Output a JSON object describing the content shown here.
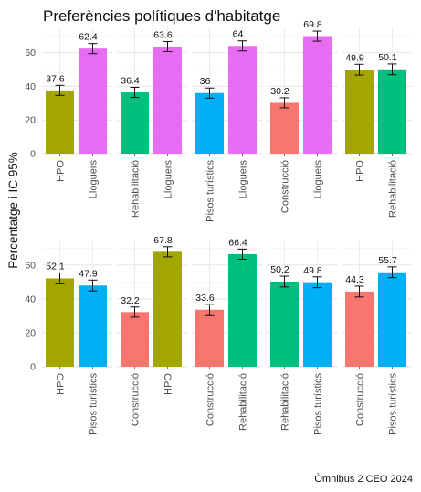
{
  "chart_data": {
    "type": "bar",
    "title": "Preferències polítiques d'habitatge",
    "ylabel": "Percentatge i IC 95%",
    "caption": "Òmnibus 2 CEO 2024",
    "ylim": [
      0,
      75
    ],
    "yticks": [
      "0",
      "20",
      "40",
      "60"
    ],
    "grid": true,
    "error_bars": "IC 95%",
    "colors": {
      "HPO": "#a3a500",
      "Lloguers": "#e76bf3",
      "Rehabilitació": "#00bf7d",
      "Pisos turístics": "#00b0f6",
      "Construcció": "#f8766d"
    },
    "panels": [
      {
        "bars": [
          {
            "category": "HPO",
            "value": 37.6,
            "label": "37.6",
            "ci": 3.0
          },
          {
            "category": "Lloguers",
            "value": 62.4,
            "label": "62.4",
            "ci": 3.0
          }
        ]
      },
      {
        "bars": [
          {
            "category": "Rehabilitació",
            "value": 36.4,
            "label": "36.4",
            "ci": 3.0
          },
          {
            "category": "Lloguers",
            "value": 63.6,
            "label": "63.6",
            "ci": 3.0
          }
        ]
      },
      {
        "bars": [
          {
            "category": "Pisos turístics",
            "value": 36,
            "label": "36",
            "ci": 3.0
          },
          {
            "category": "Lloguers",
            "value": 64,
            "label": "64",
            "ci": 3.0
          }
        ]
      },
      {
        "bars": [
          {
            "category": "Construcció",
            "value": 30.2,
            "label": "30.2",
            "ci": 3.0
          },
          {
            "category": "Lloguers",
            "value": 69.8,
            "label": "69.8",
            "ci": 3.0
          }
        ]
      },
      {
        "bars": [
          {
            "category": "HPO",
            "value": 49.9,
            "label": "49.9",
            "ci": 3.2
          },
          {
            "category": "Rehabilitació",
            "value": 50.1,
            "label": "50.1",
            "ci": 3.2
          }
        ]
      },
      {
        "bars": [
          {
            "category": "HPO",
            "value": 52.1,
            "label": "52.1",
            "ci": 3.2
          },
          {
            "category": "Pisos turístics",
            "value": 47.9,
            "label": "47.9",
            "ci": 3.2
          }
        ]
      },
      {
        "bars": [
          {
            "category": "Construcció",
            "value": 32.2,
            "label": "32.2",
            "ci": 3.0
          },
          {
            "category": "HPO",
            "value": 67.8,
            "label": "67.8",
            "ci": 3.0
          }
        ]
      },
      {
        "bars": [
          {
            "category": "Construcció",
            "value": 33.6,
            "label": "33.6",
            "ci": 3.0
          },
          {
            "category": "Rehabilitació",
            "value": 66.4,
            "label": "66.4",
            "ci": 3.0
          }
        ]
      },
      {
        "bars": [
          {
            "category": "Rehabilitació",
            "value": 50.2,
            "label": "50.2",
            "ci": 3.2
          },
          {
            "category": "Pisos turístics",
            "value": 49.8,
            "label": "49.8",
            "ci": 3.2
          }
        ]
      },
      {
        "bars": [
          {
            "category": "Construcció",
            "value": 44.3,
            "label": "44.3",
            "ci": 3.2
          },
          {
            "category": "Pisos turístics",
            "value": 55.7,
            "label": "55.7",
            "ci": 3.2
          }
        ]
      }
    ]
  }
}
